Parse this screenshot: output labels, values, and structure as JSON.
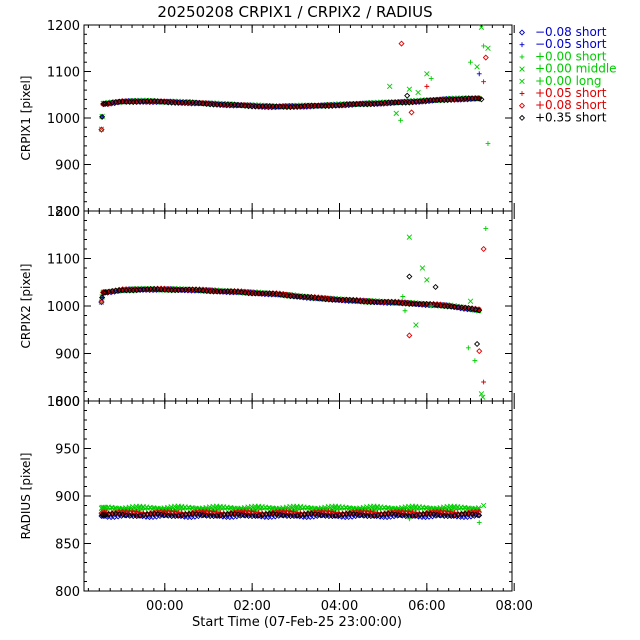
{
  "chart_data": {
    "type": "scatter",
    "title": "20250208 CRPIX1 / CRPIX2 / RADIUS",
    "xlabel": "Start Time (07-Feb-25 23:00:00)",
    "xlim": [
      -0.85,
      8.95
    ],
    "xticks": [
      {
        "value": 1,
        "label": "00:00"
      },
      {
        "value": 3,
        "label": "02:00"
      },
      {
        "value": 5,
        "label": "04:00"
      },
      {
        "value": 7,
        "label": "06:00"
      },
      {
        "value": 9,
        "label": "08:00"
      }
    ],
    "panels": [
      {
        "id": "crpix1",
        "ylabel": "CRPIX1 [pixel]",
        "ylim": [
          800,
          1200
        ],
        "yticks": [
          800,
          900,
          1000,
          1100,
          1200
        ],
        "base": [
          [
            -0.45,
            975
          ],
          [
            -0.42,
            1030
          ],
          [
            0.0,
            1035
          ],
          [
            0.5,
            1036
          ],
          [
            1.5,
            1033
          ],
          [
            2.5,
            1028
          ],
          [
            3.5,
            1024
          ],
          [
            4.5,
            1026
          ],
          [
            5.5,
            1030
          ],
          [
            6.5,
            1034
          ],
          [
            7.5,
            1040
          ],
          [
            8.25,
            1042
          ]
        ]
      },
      {
        "id": "crpix2",
        "ylabel": "CRPIX2 [pixel]",
        "ylim": [
          800,
          1200
        ],
        "yticks": [
          800,
          900,
          1000,
          1100,
          1200
        ],
        "base": [
          [
            -0.45,
            1008
          ],
          [
            -0.42,
            1028
          ],
          [
            0.0,
            1033
          ],
          [
            0.5,
            1035
          ],
          [
            1.5,
            1034
          ],
          [
            2.5,
            1030
          ],
          [
            3.5,
            1025
          ],
          [
            4.5,
            1016
          ],
          [
            5.5,
            1010
          ],
          [
            6.5,
            1006
          ],
          [
            7.5,
            1000
          ],
          [
            8.25,
            990
          ]
        ]
      },
      {
        "id": "radius",
        "ylabel": "RADIUS [pixel]",
        "ylim": [
          800,
          1000
        ],
        "yticks": [
          800,
          850,
          900,
          950,
          1000
        ],
        "base": [
          [
            -0.45,
            880
          ],
          [
            8.25,
            880
          ]
        ]
      }
    ],
    "legend": {
      "placement": "top-right",
      "entries": [
        {
          "symbol": "◇",
          "label": "−0.08 short",
          "color": "#0000cc"
        },
        {
          "symbol": "+",
          "label": "−0.05 short",
          "color": "#0000cc"
        },
        {
          "symbol": "+",
          "label": "+0.00 short",
          "color": "#00cc00"
        },
        {
          "symbol": "×",
          "label": "+0.00 middle",
          "color": "#00cc00"
        },
        {
          "symbol": "×",
          "label": "+0.00 long",
          "color": "#00cc00"
        },
        {
          "symbol": "+",
          "label": "+0.05 short",
          "color": "#dd0000"
        },
        {
          "symbol": "◇",
          "label": "+0.08 short",
          "color": "#dd0000"
        },
        {
          "symbol": "◇",
          "label": "+0.35 short",
          "color": "#000000"
        }
      ]
    },
    "series": [
      {
        "name": "−0.08 short",
        "panel_offsets": [
          0,
          0,
          -1
        ]
      },
      {
        "name": "−0.05 short",
        "panel_offsets": [
          0,
          0,
          0
        ]
      },
      {
        "name": "+0.00 short",
        "panel_offsets": [
          0,
          0,
          6
        ]
      },
      {
        "name": "+0.00 middle",
        "panel_offsets": [
          1,
          0,
          7
        ]
      },
      {
        "name": "+0.00 long",
        "panel_offsets": [
          1,
          1,
          8
        ]
      },
      {
        "name": "+0.05 short",
        "panel_offsets": [
          0,
          0,
          3
        ]
      },
      {
        "name": "+0.08 short",
        "panel_offsets": [
          0,
          1,
          2
        ]
      },
      {
        "name": "+0.35 short",
        "panel_offsets": [
          0,
          0,
          0
        ]
      }
    ],
    "outliers": [
      {
        "panel": "crpix1",
        "points": [
          [
            6.42,
            1160,
            "+0.08 short"
          ],
          [
            8.25,
            1195,
            "+0.00 middle"
          ],
          [
            8.3,
            1155,
            "+0.00 short"
          ],
          [
            8.4,
            945,
            "+0.00 short"
          ],
          [
            7.0,
            1095,
            "+0.00 middle"
          ],
          [
            6.15,
            1068,
            "+0.00 middle"
          ],
          [
            6.3,
            1010,
            "+0.00 middle"
          ],
          [
            6.4,
            995,
            "+0.00 short"
          ],
          [
            6.6,
            1062,
            "+0.00 long"
          ],
          [
            6.8,
            1055,
            "+0.00 middle"
          ],
          [
            7.1,
            1085,
            "+0.00 short"
          ],
          [
            6.55,
            1048,
            "+0.35 short"
          ],
          [
            6.65,
            1012,
            "+0.08 short"
          ],
          [
            7.0,
            1068,
            "+0.05 short"
          ],
          [
            8.0,
            1120,
            "+0.00 short"
          ],
          [
            8.15,
            1110,
            "+0.00 long"
          ],
          [
            8.3,
            1078,
            "+0.05 short"
          ],
          [
            8.35,
            1130,
            "+0.08 short"
          ],
          [
            8.2,
            1095,
            "−0.05 short"
          ],
          [
            8.4,
            1150,
            "+0.00 middle"
          ],
          [
            8.25,
            1040,
            "+0.35 short"
          ]
        ]
      },
      {
        "panel": "crpix2",
        "points": [
          [
            6.6,
            1145,
            "+0.00 middle"
          ],
          [
            6.6,
            1062,
            "+0.35 short"
          ],
          [
            6.45,
            1020,
            "+0.00 short"
          ],
          [
            6.6,
            938,
            "+0.08 short"
          ],
          [
            6.5,
            990,
            "+0.00 short"
          ],
          [
            6.9,
            1080,
            "+0.00 long"
          ],
          [
            7.0,
            1055,
            "+0.00 middle"
          ],
          [
            7.2,
            1040,
            "+0.35 short"
          ],
          [
            7.1,
            1000,
            "+0.00 short"
          ],
          [
            6.75,
            960,
            "+0.00 middle"
          ],
          [
            8.0,
            1010,
            "+0.00 long"
          ],
          [
            7.95,
            912,
            "+0.00 short"
          ],
          [
            8.1,
            885,
            "+0.00 short"
          ],
          [
            8.25,
            815,
            "+0.00 middle"
          ],
          [
            8.35,
            1163,
            "+0.00 short"
          ],
          [
            8.3,
            1120,
            "+0.08 short"
          ],
          [
            8.15,
            920,
            "+0.35 short"
          ],
          [
            8.2,
            905,
            "+0.08 short"
          ],
          [
            8.3,
            840,
            "+0.05 short"
          ],
          [
            8.28,
            808,
            "+0.00 long"
          ]
        ]
      },
      {
        "panel": "radius",
        "points": [
          [
            6.6,
            876,
            "+0.00 short"
          ],
          [
            8.2,
            872,
            "+0.00 short"
          ],
          [
            8.3,
            890,
            "+0.00 middle"
          ]
        ]
      }
    ]
  }
}
